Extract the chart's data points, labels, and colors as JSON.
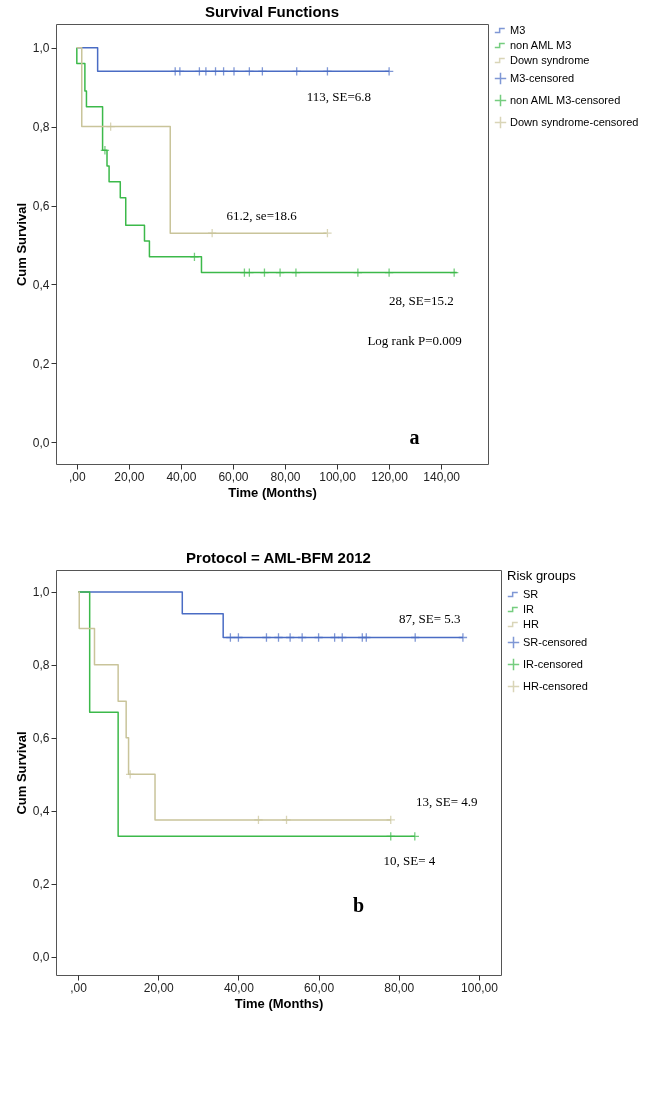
{
  "chart_data": [
    {
      "type": "step",
      "title": "Survival Functions",
      "xlabel": "Time (Months)",
      "ylabel": "Cum Survival",
      "xlim": [
        -8,
        158
      ],
      "ylim": [
        -0.055,
        1.06
      ],
      "xticks": [
        {
          "value": 0,
          "label": ",00"
        },
        {
          "value": 20,
          "label": "20,00"
        },
        {
          "value": 40,
          "label": "40,00"
        },
        {
          "value": 60,
          "label": "60,00"
        },
        {
          "value": 80,
          "label": "80,00"
        },
        {
          "value": 100,
          "label": "100,00"
        },
        {
          "value": 120,
          "label": "120,00"
        },
        {
          "value": 140,
          "label": "140,00"
        }
      ],
      "yticks": [
        {
          "value": 0,
          "label": "0,0"
        },
        {
          "value": 0.2,
          "label": "0,2"
        },
        {
          "value": 0.4,
          "label": "0,4"
        },
        {
          "value": 0.6,
          "label": "0,6"
        },
        {
          "value": 0.8,
          "label": "0,8"
        },
        {
          "value": 1,
          "label": "1,0"
        }
      ],
      "legend": "right",
      "grid": false,
      "series": [
        {
          "name": "M3",
          "color": "#4a6cc4",
          "x": [
            0,
            8,
            120
          ],
          "values": [
            1,
            0.94,
            0.94
          ]
        },
        {
          "name": "non AML M3",
          "color": "#3cb94a",
          "x": [
            0,
            0,
            3.1,
            3.7,
            9.9,
            11.6,
            12.4,
            16.7,
            18.8,
            26,
            27.9,
            47.9,
            146
          ],
          "values": [
            1,
            0.96,
            0.89,
            0.85,
            0.74,
            0.7,
            0.66,
            0.62,
            0.55,
            0.51,
            0.47,
            0.43,
            0.43
          ]
        },
        {
          "name": "Down syndrome",
          "color": "#c9c49a",
          "x": [
            0,
            1.9,
            35.9,
            96
          ],
          "values": [
            1,
            0.8,
            0.53,
            0.53
          ]
        },
        {
          "name": "M3-censored",
          "color": "#4a6cc4",
          "type": "scatter",
          "marker": "cross",
          "x": [
            37.8,
            39.6,
            47.1,
            49.6,
            53.3,
            56.4,
            60.4,
            66.3,
            71.3,
            84.5,
            96.3,
            120
          ],
          "values": [
            0.94,
            0.94,
            0.94,
            0.94,
            0.94,
            0.94,
            0.94,
            0.94,
            0.94,
            0.94,
            0.94,
            0.94
          ]
        },
        {
          "name": "non AML M3-censored",
          "color": "#3cb94a",
          "type": "scatter",
          "marker": "cross",
          "x": [
            10.8,
            45.2,
            64.4,
            66.3,
            72.1,
            78.1,
            84.2,
            108,
            120,
            145
          ],
          "values": [
            0.74,
            0.47,
            0.43,
            0.43,
            0.43,
            0.43,
            0.43,
            0.43,
            0.43,
            0.43
          ]
        },
        {
          "name": "Down syndrome-censored",
          "color": "#c9c49a",
          "type": "scatter",
          "marker": "cross",
          "x": [
            13,
            52,
            96.3
          ],
          "values": [
            0.8,
            0.53,
            0.53
          ]
        }
      ],
      "annotations": [
        "113, SE=6.8",
        "61.2, se=18.6",
        "28, SE=15.2",
        "Log rank P=0.009",
        "a"
      ]
    },
    {
      "type": "step",
      "title": "Protocol = AML-BFM 2012",
      "xlabel": "Time (Months)",
      "ylabel": "Cum Survival",
      "legend_title": "Risk groups",
      "xlim": [
        -5.5,
        105.5
      ],
      "ylim": [
        -0.05,
        1.06
      ],
      "xticks": [
        {
          "value": 0,
          "label": ",00"
        },
        {
          "value": 20,
          "label": "20,00"
        },
        {
          "value": 40,
          "label": "40,00"
        },
        {
          "value": 60,
          "label": "60,00"
        },
        {
          "value": 80,
          "label": "80,00"
        },
        {
          "value": 100,
          "label": "100,00"
        }
      ],
      "yticks": [
        {
          "value": 0,
          "label": "0,0"
        },
        {
          "value": 0.2,
          "label": "0,2"
        },
        {
          "value": 0.4,
          "label": "0,4"
        },
        {
          "value": 0.6,
          "label": "0,6"
        },
        {
          "value": 0.8,
          "label": "0,8"
        },
        {
          "value": 1,
          "label": "1,0"
        }
      ],
      "legend": "right",
      "grid": false,
      "series": [
        {
          "name": "SR",
          "color": "#4a6cc4",
          "x": [
            0,
            26,
            36.2,
            96
          ],
          "values": [
            1,
            0.94,
            0.875,
            0.875
          ]
        },
        {
          "name": "IR",
          "color": "#3cb94a",
          "x": [
            0,
            2.9,
            10,
            84
          ],
          "values": [
            1,
            0.67,
            0.33,
            0.33
          ]
        },
        {
          "name": "HR",
          "color": "#c9c49a",
          "x": [
            0,
            0.3,
            4.1,
            10,
            12,
            12.6,
            19.2,
            78
          ],
          "values": [
            1,
            0.9,
            0.8,
            0.7,
            0.6,
            0.5,
            0.375,
            0.375
          ]
        },
        {
          "name": "SR-censored",
          "color": "#4a6cc4",
          "type": "scatter",
          "marker": "cross",
          "x": [
            38,
            40,
            47,
            50,
            52.9,
            55.9,
            60,
            64,
            65.9,
            70.9,
            71.9,
            84.1,
            96
          ],
          "values": [
            0.875,
            0.875,
            0.875,
            0.875,
            0.875,
            0.875,
            0.875,
            0.875,
            0.875,
            0.875,
            0.875,
            0.875,
            0.875
          ]
        },
        {
          "name": "IR-censored",
          "color": "#3cb94a",
          "type": "scatter",
          "marker": "cross",
          "x": [
            78,
            84
          ],
          "values": [
            0.33,
            0.33
          ]
        },
        {
          "name": "HR-censored",
          "color": "#c9c49a",
          "type": "scatter",
          "marker": "cross",
          "x": [
            13,
            45,
            52,
            78
          ],
          "values": [
            0.5,
            0.375,
            0.375,
            0.375
          ]
        }
      ],
      "annotations": [
        "87, SE= 5.3",
        "13, SE= 4.9",
        "10, SE= 4",
        "b"
      ]
    }
  ]
}
